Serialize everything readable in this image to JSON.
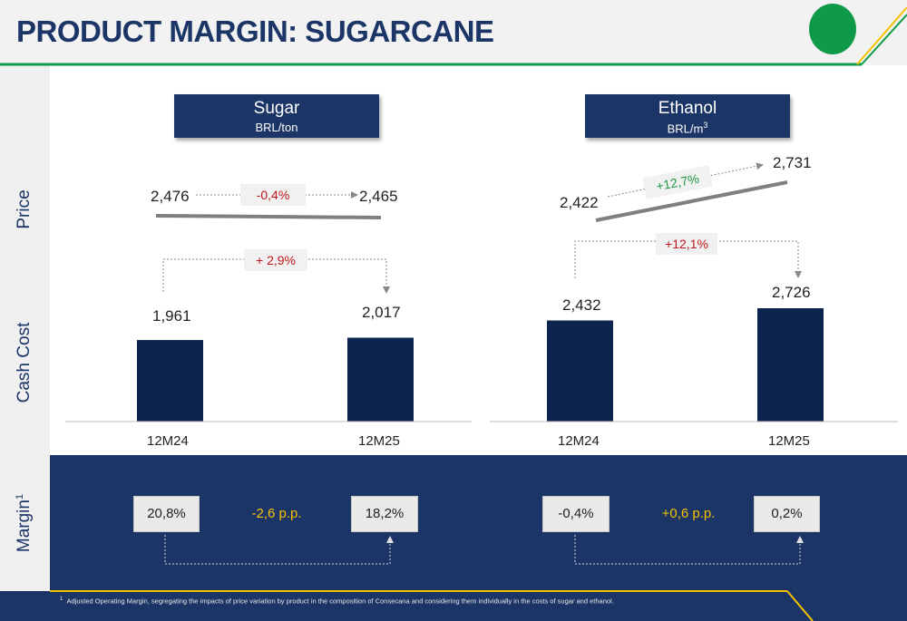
{
  "header": {
    "title": "PRODUCT MARGIN: SUGARCANE",
    "brand_color": "#1b3566",
    "accent_color": "#0e9a48"
  },
  "row_labels": {
    "price": "Price",
    "cash_cost": "Cash Cost",
    "margin": "Margin",
    "margin_note_marker": "1"
  },
  "panels": {
    "sugar": {
      "title": "Sugar",
      "unit": "BRL/ton",
      "price": {
        "from": "2,476",
        "to": "2,465",
        "change": "-0,4%"
      },
      "cost_change": "+ 2,9%",
      "margin": {
        "from": "20,8%",
        "to": "18,2%",
        "change": "-2,6 p.p."
      }
    },
    "ethanol": {
      "title": "Ethanol",
      "unit_base": "BRL/m",
      "unit_sup": "3",
      "price": {
        "from": "2,422",
        "to": "2,731",
        "change": "+12,7%"
      },
      "cost_change": "+12,1%",
      "margin": {
        "from": "-0,4%",
        "to": "0,2%",
        "change": "+0,6 p.p."
      }
    }
  },
  "chart_data": [
    {
      "type": "bar",
      "title": "Sugar",
      "subtitle": "BRL/ton",
      "categories": [
        "12M24",
        "12M25"
      ],
      "values": [
        1961,
        2017
      ],
      "labels": [
        "1,961",
        "2,017"
      ],
      "color": "#0e2450"
    },
    {
      "type": "bar",
      "title": "Ethanol",
      "subtitle": "BRL/m³",
      "categories": [
        "12M24",
        "12M25"
      ],
      "values": [
        2432,
        2726
      ],
      "labels": [
        "2,432",
        "2,726"
      ],
      "color": "#0e2450"
    }
  ],
  "footnote": {
    "marker": "1",
    "text": "Adjusted Operating Margin, segregating the impacts of price variation by product in the composition of Consecana and considering them individually in the costs of sugar and ethanol."
  },
  "colors": {
    "negative": "#c0161b",
    "positive": "#1e9a45",
    "margin_change": "#f5c200",
    "bar": "#0e2450"
  }
}
